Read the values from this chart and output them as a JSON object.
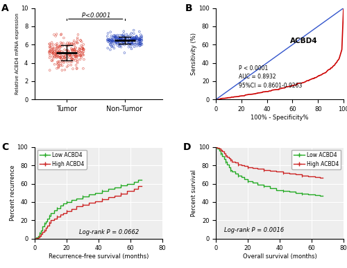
{
  "panel_A": {
    "ylabel": "Relative ACBD4 mRNA expression",
    "groups": [
      "Tumor",
      "Non-Tumor"
    ],
    "tumor_mean": 5.05,
    "tumor_std": 0.85,
    "tumor_n": 230,
    "tumor_color": "#d63020",
    "nontumor_mean": 6.45,
    "nontumor_std": 0.42,
    "nontumor_n": 210,
    "nontumor_color": "#1535b5",
    "ylim": [
      0,
      10
    ],
    "yticks": [
      0,
      2,
      4,
      6,
      8,
      10
    ]
  },
  "panel_B": {
    "ylabel": "Sensitivity (%)",
    "xlabel": "100% - Specificity%",
    "label": "ACBD4",
    "annotation": "P < 0.0001\nAUC = 0.8932\n95%CI = 0.8601-0.9263",
    "roc_color": "#cc0000",
    "diag_color": "#3355cc",
    "xlim": [
      0,
      100
    ],
    "ylim": [
      0,
      100
    ],
    "xticks": [
      0,
      20,
      40,
      60,
      80,
      100
    ],
    "yticks": [
      0,
      20,
      40,
      60,
      80,
      100
    ]
  },
  "panel_C": {
    "ylabel": "Percent recurrence",
    "xlabel": "Recurrence-free survival (months)",
    "low_color": "#22aa22",
    "high_color": "#cc2222",
    "annotation": "Log-rank P = 0.0662",
    "legend": [
      "Low ACBD4",
      "High ACBD4"
    ],
    "xlim": [
      0,
      80
    ],
    "ylim": [
      0,
      100
    ],
    "xticks": [
      0,
      20,
      40,
      60,
      80
    ],
    "yticks": [
      0,
      20,
      40,
      60,
      80,
      100
    ]
  },
  "panel_D": {
    "ylabel": "Percent survival",
    "xlabel": "Overall survival (months)",
    "low_color": "#22aa22",
    "high_color": "#cc2222",
    "annotation": "Log-rank P = 0.0016",
    "legend": [
      "Low ACBD4",
      "High ACBD4"
    ],
    "xlim": [
      0,
      80
    ],
    "ylim": [
      0,
      100
    ],
    "xticks": [
      0,
      20,
      40,
      60,
      80
    ],
    "yticks": [
      0,
      20,
      40,
      60,
      80,
      100
    ]
  },
  "bg_color": "#eeeeee"
}
